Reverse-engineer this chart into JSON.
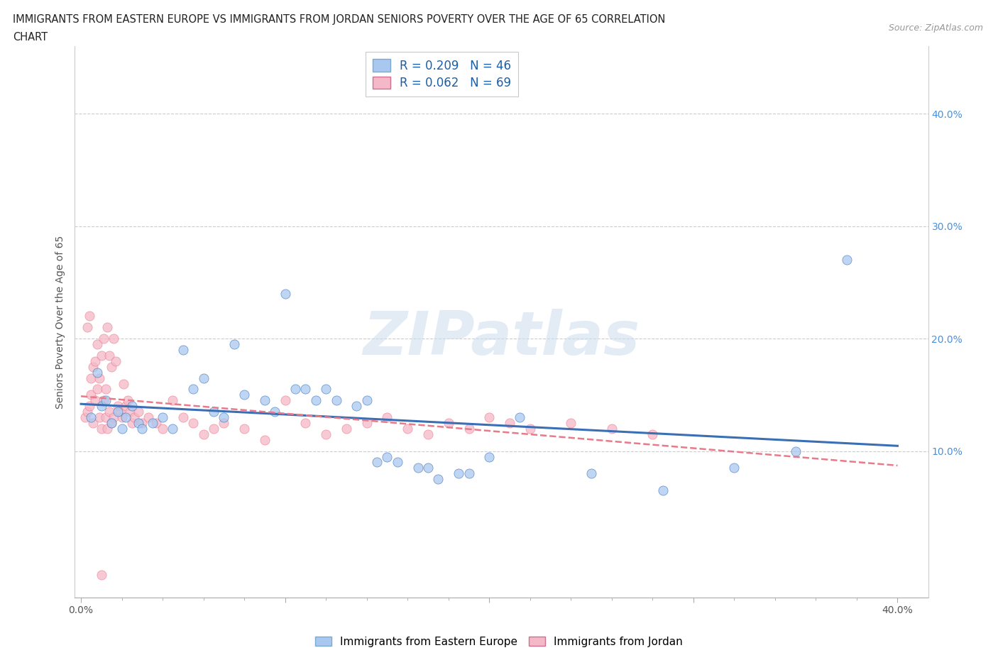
{
  "title_line1": "IMMIGRANTS FROM EASTERN EUROPE VS IMMIGRANTS FROM JORDAN SENIORS POVERTY OVER THE AGE OF 65 CORRELATION",
  "title_line2": "CHART",
  "source": "Source: ZipAtlas.com",
  "ylabel": "Seniors Poverty Over the Age of 65",
  "xlim": [
    -0.003,
    0.415
  ],
  "ylim": [
    -0.03,
    0.46
  ],
  "grid_color": "#cccccc",
  "background_color": "#ffffff",
  "watermark": "ZIPatlas",
  "legend_R1": "R = 0.209",
  "legend_N1": "N = 46",
  "legend_R2": "R = 0.062",
  "legend_N2": "N = 69",
  "color_eastern": "#a8c8f0",
  "color_jordan": "#f5b8c8",
  "trendline_eastern": "#3a6fb5",
  "trendline_jordan": "#e87a8a",
  "eastern_europe_x": [
    0.005,
    0.008,
    0.01,
    0.012,
    0.015,
    0.018,
    0.02,
    0.022,
    0.025,
    0.028,
    0.03,
    0.035,
    0.04,
    0.045,
    0.05,
    0.055,
    0.06,
    0.065,
    0.07,
    0.075,
    0.08,
    0.09,
    0.095,
    0.1,
    0.105,
    0.11,
    0.115,
    0.12,
    0.125,
    0.135,
    0.14,
    0.145,
    0.15,
    0.155,
    0.165,
    0.17,
    0.175,
    0.185,
    0.19,
    0.2,
    0.215,
    0.25,
    0.285,
    0.32,
    0.35,
    0.375
  ],
  "eastern_europe_y": [
    0.13,
    0.17,
    0.14,
    0.145,
    0.125,
    0.135,
    0.12,
    0.13,
    0.14,
    0.125,
    0.12,
    0.125,
    0.13,
    0.12,
    0.19,
    0.155,
    0.165,
    0.135,
    0.13,
    0.195,
    0.15,
    0.145,
    0.135,
    0.24,
    0.155,
    0.155,
    0.145,
    0.155,
    0.145,
    0.14,
    0.145,
    0.09,
    0.095,
    0.09,
    0.085,
    0.085,
    0.075,
    0.08,
    0.08,
    0.095,
    0.13,
    0.08,
    0.065,
    0.085,
    0.1,
    0.27
  ],
  "jordan_x": [
    0.002,
    0.003,
    0.003,
    0.004,
    0.004,
    0.005,
    0.005,
    0.006,
    0.006,
    0.007,
    0.007,
    0.008,
    0.008,
    0.009,
    0.009,
    0.01,
    0.01,
    0.011,
    0.011,
    0.012,
    0.012,
    0.013,
    0.013,
    0.014,
    0.014,
    0.015,
    0.015,
    0.016,
    0.016,
    0.017,
    0.018,
    0.019,
    0.02,
    0.021,
    0.022,
    0.023,
    0.024,
    0.025,
    0.026,
    0.028,
    0.03,
    0.033,
    0.037,
    0.04,
    0.045,
    0.05,
    0.055,
    0.06,
    0.065,
    0.07,
    0.08,
    0.09,
    0.1,
    0.11,
    0.12,
    0.13,
    0.14,
    0.15,
    0.16,
    0.17,
    0.18,
    0.19,
    0.2,
    0.21,
    0.22,
    0.24,
    0.26,
    0.28,
    0.01
  ],
  "jordan_y": [
    0.13,
    0.21,
    0.135,
    0.22,
    0.14,
    0.15,
    0.165,
    0.125,
    0.175,
    0.145,
    0.18,
    0.155,
    0.195,
    0.13,
    0.165,
    0.12,
    0.185,
    0.145,
    0.2,
    0.155,
    0.13,
    0.21,
    0.12,
    0.185,
    0.135,
    0.175,
    0.125,
    0.13,
    0.2,
    0.18,
    0.14,
    0.135,
    0.13,
    0.16,
    0.14,
    0.145,
    0.135,
    0.125,
    0.13,
    0.135,
    0.125,
    0.13,
    0.125,
    0.12,
    0.145,
    0.13,
    0.125,
    0.115,
    0.12,
    0.125,
    0.12,
    0.11,
    0.145,
    0.125,
    0.115,
    0.12,
    0.125,
    0.13,
    0.12,
    0.115,
    0.125,
    0.12,
    0.13,
    0.125,
    0.12,
    0.125,
    0.12,
    0.115,
    -0.01
  ],
  "label_eastern": "Immigrants from Eastern Europe",
  "label_jordan": "Immigrants from Jordan"
}
